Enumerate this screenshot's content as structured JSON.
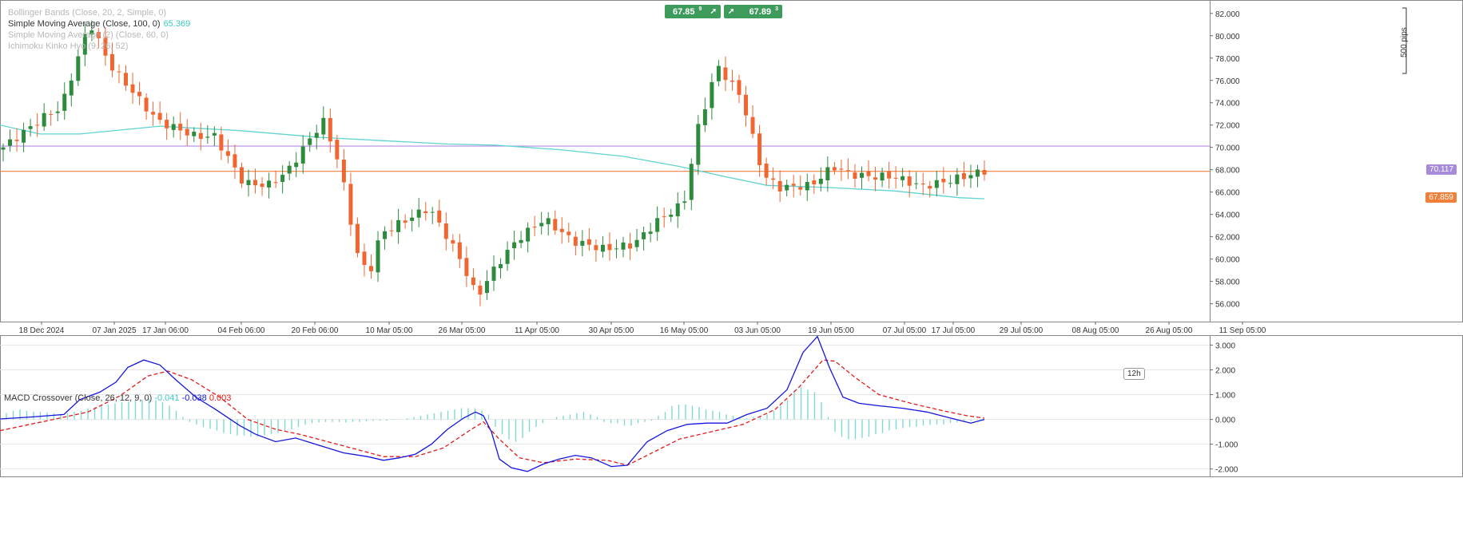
{
  "quote": {
    "bid": "67.85",
    "bid_sup": "9",
    "ask": "67.89",
    "ask_sup": "3"
  },
  "indicators": [
    {
      "label": "Bollinger Bands (Close, 20, 2, Simple, 0)",
      "value": "",
      "active": false
    },
    {
      "label": "Simple Moving Average (Close, 100, 0)",
      "value": "65.369",
      "active": true
    },
    {
      "label": "Simple Moving Average (2) (Close, 60, 0)",
      "value": "",
      "active": false
    },
    {
      "label": "Ichimoku Kinko Hyo (9, 26, 52)",
      "value": "",
      "active": false
    }
  ],
  "price_labels": {
    "line": "70.117",
    "current": "67.859"
  },
  "pips_label": "500 pips",
  "timeframe_label": "12h",
  "macd_legend": {
    "label": "MACD Crossover (Close, 26, 12, 9, 0)",
    "v1": "-0.041",
    "v2": "-0.038",
    "v3": "0.003"
  },
  "colors": {
    "up": "#2e8b3e",
    "down": "#f06530",
    "sma": "#5fd3d0",
    "hline_violet": "#b38ee0",
    "hline_orange": "#f07f3a",
    "macd": "#1515e0",
    "signal": "#e41a1a",
    "hist": "#7fd8d3",
    "quote_bg": "#3d9c5c"
  },
  "chart_data": [
    {
      "type": "candlestick",
      "title": "",
      "y_axis": {
        "ticks": [
          56,
          58,
          60,
          62,
          64,
          66,
          68,
          70,
          72,
          74,
          76,
          78,
          80,
          82
        ],
        "tick_labels": [
          "56.000",
          "58.000",
          "60.000",
          "62.000",
          "64.000",
          "66.000",
          "68.000",
          "70.000",
          "72.000",
          "74.000",
          "76.000",
          "78.000",
          "80.000",
          "82.000"
        ],
        "ylim": [
          54.4,
          83.2
        ]
      },
      "x_labels": [
        "18 Dec 2024",
        "07 Jan 2025",
        "17 Jan 06:00",
        "04 Feb 06:00",
        "20 Feb 06:00",
        "10 Mar 05:00",
        "26 Mar 05:00",
        "11 Apr 05:00",
        "30 Apr 05:00",
        "16 May 05:00",
        "03 Jun 05:00",
        "19 Jun 05:00",
        "07 Jul 05:00",
        "17 Jul 05:00",
        "29 Jul 05:00",
        "08 Aug 05:00",
        "26 Aug 05:00",
        "11 Sep 05:00"
      ],
      "x_label_positions": [
        52,
        143,
        207,
        302,
        394,
        487,
        578,
        672,
        765,
        856,
        948,
        1040,
        1132,
        1193,
        1278,
        1371,
        1463,
        1555
      ],
      "candle_count": 145,
      "candle_x_range": [
        4,
        1232
      ],
      "key_points": [
        [
          0,
          70.0
        ],
        [
          18,
          72.9
        ],
        [
          24,
          73.5
        ],
        [
          36,
          81.2
        ],
        [
          38,
          80.3
        ],
        [
          44,
          77.5
        ],
        [
          64,
          72.4
        ],
        [
          80,
          71.0
        ],
        [
          88,
          71.0
        ],
        [
          100,
          66.8
        ],
        [
          110,
          66.6
        ],
        [
          118,
          67.8
        ],
        [
          128,
          70.9
        ],
        [
          133,
          72.4
        ],
        [
          140,
          68.4
        ],
        [
          147,
          60.6
        ],
        [
          152,
          58.5
        ],
        [
          157,
          62.3
        ],
        [
          164,
          63.1
        ],
        [
          177,
          64.6
        ],
        [
          184,
          62.2
        ],
        [
          190,
          60.0
        ],
        [
          197,
          56.6
        ],
        [
          205,
          59.4
        ],
        [
          214,
          61.8
        ],
        [
          225,
          63.6
        ],
        [
          237,
          61.6
        ],
        [
          250,
          60.9
        ],
        [
          262,
          61.3
        ],
        [
          272,
          63.4
        ],
        [
          283,
          65.0
        ],
        [
          289,
          71.8
        ],
        [
          297,
          77.3
        ],
        [
          307,
          74.5
        ],
        [
          316,
          67.5
        ],
        [
          323,
          66.4
        ],
        [
          336,
          66.6
        ],
        [
          345,
          68.3
        ],
        [
          352,
          67.6
        ],
        [
          360,
          67.4
        ],
        [
          370,
          67.4
        ],
        [
          382,
          66.5
        ],
        [
          393,
          67.0
        ],
        [
          408,
          67.9
        ]
      ],
      "sma_values": [
        [
          0,
          72.0
        ],
        [
          50,
          71.2
        ],
        [
          100,
          71.2
        ],
        [
          200,
          71.9
        ],
        [
          300,
          71.5
        ],
        [
          400,
          70.9
        ],
        [
          480,
          70.6
        ],
        [
          560,
          70.3
        ],
        [
          620,
          70.2
        ],
        [
          700,
          69.8
        ],
        [
          780,
          69.2
        ],
        [
          850,
          68.3
        ],
        [
          900,
          67.5
        ],
        [
          960,
          66.6
        ],
        [
          1040,
          66.4
        ],
        [
          1120,
          66.1
        ],
        [
          1200,
          65.5
        ],
        [
          1232,
          65.4
        ]
      ],
      "horizontal_lines": [
        70.117,
        67.859
      ]
    },
    {
      "type": "macd",
      "title": "MACD Crossover (Close, 26, 12, 9, 0)",
      "y_axis": {
        "ticks": [
          -2,
          -1,
          0,
          1,
          2,
          3
        ],
        "tick_labels": [
          "-2.000",
          "-1.000",
          "0.000",
          "1.000",
          "2.000",
          "3.000"
        ],
        "ylim": [
          -2.3,
          3.4
        ]
      },
      "macd": [
        [
          0,
          0.02
        ],
        [
          40,
          0.1
        ],
        [
          80,
          0.2
        ],
        [
          100,
          0.8
        ],
        [
          125,
          1.1
        ],
        [
          145,
          1.5
        ],
        [
          160,
          2.1
        ],
        [
          180,
          2.4
        ],
        [
          200,
          2.2
        ],
        [
          220,
          1.6
        ],
        [
          245,
          0.9
        ],
        [
          270,
          0.4
        ],
        [
          300,
          -0.25
        ],
        [
          320,
          -0.6
        ],
        [
          345,
          -0.9
        ],
        [
          370,
          -0.75
        ],
        [
          400,
          -1.05
        ],
        [
          430,
          -1.35
        ],
        [
          460,
          -1.5
        ],
        [
          480,
          -1.65
        ],
        [
          500,
          -1.55
        ],
        [
          520,
          -1.4
        ],
        [
          540,
          -1.0
        ],
        [
          560,
          -0.4
        ],
        [
          580,
          0.05
        ],
        [
          595,
          0.3
        ],
        [
          605,
          0.15
        ],
        [
          615,
          -0.5
        ],
        [
          625,
          -1.6
        ],
        [
          640,
          -1.95
        ],
        [
          660,
          -2.1
        ],
        [
          680,
          -1.8
        ],
        [
          700,
          -1.6
        ],
        [
          720,
          -1.45
        ],
        [
          740,
          -1.55
        ],
        [
          765,
          -1.9
        ],
        [
          785,
          -1.85
        ],
        [
          810,
          -0.9
        ],
        [
          835,
          -0.45
        ],
        [
          860,
          -0.2
        ],
        [
          885,
          -0.15
        ],
        [
          910,
          -0.15
        ],
        [
          935,
          0.2
        ],
        [
          960,
          0.45
        ],
        [
          985,
          1.2
        ],
        [
          1005,
          2.7
        ],
        [
          1023,
          3.35
        ],
        [
          1038,
          2.1
        ],
        [
          1055,
          0.9
        ],
        [
          1075,
          0.65
        ],
        [
          1100,
          0.55
        ],
        [
          1130,
          0.45
        ],
        [
          1160,
          0.3
        ],
        [
          1190,
          0.05
        ],
        [
          1215,
          -0.15
        ],
        [
          1232,
          0.0
        ]
      ],
      "signal": [
        [
          0,
          -0.45
        ],
        [
          60,
          -0.05
        ],
        [
          110,
          0.3
        ],
        [
          150,
          0.95
        ],
        [
          185,
          1.75
        ],
        [
          210,
          1.95
        ],
        [
          240,
          1.6
        ],
        [
          275,
          0.9
        ],
        [
          310,
          0.0
        ],
        [
          345,
          -0.4
        ],
        [
          375,
          -0.6
        ],
        [
          410,
          -0.9
        ],
        [
          445,
          -1.2
        ],
        [
          480,
          -1.5
        ],
        [
          520,
          -1.5
        ],
        [
          555,
          -1.15
        ],
        [
          590,
          -0.4
        ],
        [
          605,
          -0.1
        ],
        [
          625,
          -0.8
        ],
        [
          650,
          -1.55
        ],
        [
          680,
          -1.75
        ],
        [
          720,
          -1.6
        ],
        [
          760,
          -1.65
        ],
        [
          785,
          -1.85
        ],
        [
          810,
          -1.45
        ],
        [
          850,
          -0.8
        ],
        [
          890,
          -0.5
        ],
        [
          930,
          -0.2
        ],
        [
          970,
          0.4
        ],
        [
          1000,
          1.3
        ],
        [
          1030,
          2.4
        ],
        [
          1045,
          2.35
        ],
        [
          1070,
          1.7
        ],
        [
          1100,
          1.0
        ],
        [
          1140,
          0.65
        ],
        [
          1180,
          0.35
        ],
        [
          1210,
          0.15
        ],
        [
          1232,
          0.05
        ]
      ],
      "hist_start_x": 8,
      "hist_step_x": 8.5,
      "hist": [
        0.25,
        0.35,
        0.4,
        0.35,
        0.3,
        0.3,
        0.28,
        0.25,
        0.22,
        0.25,
        0.3,
        0.35,
        0.45,
        0.5,
        0.55,
        0.6,
        0.65,
        0.7,
        0.72,
        0.78,
        0.8,
        0.82,
        0.78,
        0.7,
        0.55,
        0.35,
        0.1,
        -0.1,
        -0.2,
        -0.3,
        -0.38,
        -0.45,
        -0.55,
        -0.6,
        -0.65,
        -0.65,
        -0.7,
        -0.7,
        -0.65,
        -0.6,
        -0.55,
        -0.45,
        -0.4,
        -0.3,
        -0.22,
        -0.15,
        -0.12,
        -0.1,
        -0.1,
        -0.1,
        -0.12,
        -0.1,
        -0.1,
        -0.08,
        -0.06,
        -0.05,
        -0.05,
        -0.02,
        0.0,
        0.05,
        0.1,
        0.15,
        0.2,
        0.25,
        0.3,
        0.35,
        0.4,
        0.45,
        0.45,
        0.45,
        0.35,
        0.2,
        -0.3,
        -0.6,
        -0.8,
        -0.9,
        -0.75,
        -0.5,
        -0.3,
        -0.15,
        0.0,
        0.1,
        0.15,
        0.2,
        0.25,
        0.3,
        0.2,
        0.1,
        -0.1,
        -0.15,
        -0.15,
        -0.25,
        -0.25,
        -0.15,
        -0.1,
        -0.05,
        0.15,
        0.3,
        0.55,
        0.6,
        0.6,
        0.55,
        0.5,
        0.4,
        0.35,
        0.3,
        0.2,
        0.15,
        0.1,
        0.05,
        0.1,
        0.15,
        0.2,
        0.35,
        0.55,
        0.8,
        1.1,
        1.3,
        1.2,
        1.1,
        0.7,
        0.1,
        -0.5,
        -0.7,
        -0.8,
        -0.8,
        -0.75,
        -0.7,
        -0.6,
        -0.55,
        -0.45,
        -0.4,
        -0.35,
        -0.3,
        -0.3,
        -0.25,
        -0.22,
        -0.2,
        -0.2,
        -0.15,
        -0.12,
        -0.1,
        -0.06,
        -0.03,
        0.0
      ]
    }
  ]
}
